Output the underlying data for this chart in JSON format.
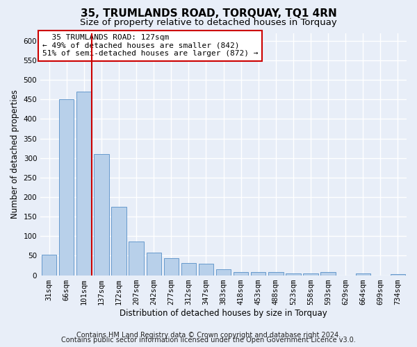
{
  "title1": "35, TRUMLANDS ROAD, TORQUAY, TQ1 4RN",
  "title2": "Size of property relative to detached houses in Torquay",
  "xlabel": "Distribution of detached houses by size in Torquay",
  "ylabel": "Number of detached properties",
  "categories": [
    "31sqm",
    "66sqm",
    "101sqm",
    "137sqm",
    "172sqm",
    "207sqm",
    "242sqm",
    "277sqm",
    "312sqm",
    "347sqm",
    "383sqm",
    "418sqm",
    "453sqm",
    "488sqm",
    "523sqm",
    "558sqm",
    "593sqm",
    "629sqm",
    "664sqm",
    "699sqm",
    "734sqm"
  ],
  "values": [
    53,
    450,
    470,
    310,
    175,
    87,
    58,
    43,
    31,
    30,
    15,
    9,
    8,
    9,
    5,
    5,
    8,
    0,
    4,
    0,
    3
  ],
  "bar_color": "#b8d0ea",
  "bar_edge_color": "#6699cc",
  "vline_color": "#cc0000",
  "annotation_text": "  35 TRUMLANDS ROAD: 127sqm\n← 49% of detached houses are smaller (842)\n51% of semi-detached houses are larger (872) →",
  "annotation_box_color": "#ffffff",
  "annotation_box_edge": "#cc0000",
  "ylim": [
    0,
    620
  ],
  "yticks": [
    0,
    50,
    100,
    150,
    200,
    250,
    300,
    350,
    400,
    450,
    500,
    550,
    600
  ],
  "footer1": "Contains HM Land Registry data © Crown copyright and database right 2024.",
  "footer2": "Contains public sector information licensed under the Open Government Licence v3.0.",
  "background_color": "#e8eef8",
  "plot_bg_color": "#e8eef8",
  "grid_color": "#ffffff",
  "title1_fontsize": 11,
  "title2_fontsize": 9.5,
  "axis_label_fontsize": 8.5,
  "tick_fontsize": 7.5,
  "annotation_fontsize": 8,
  "footer_fontsize": 7
}
